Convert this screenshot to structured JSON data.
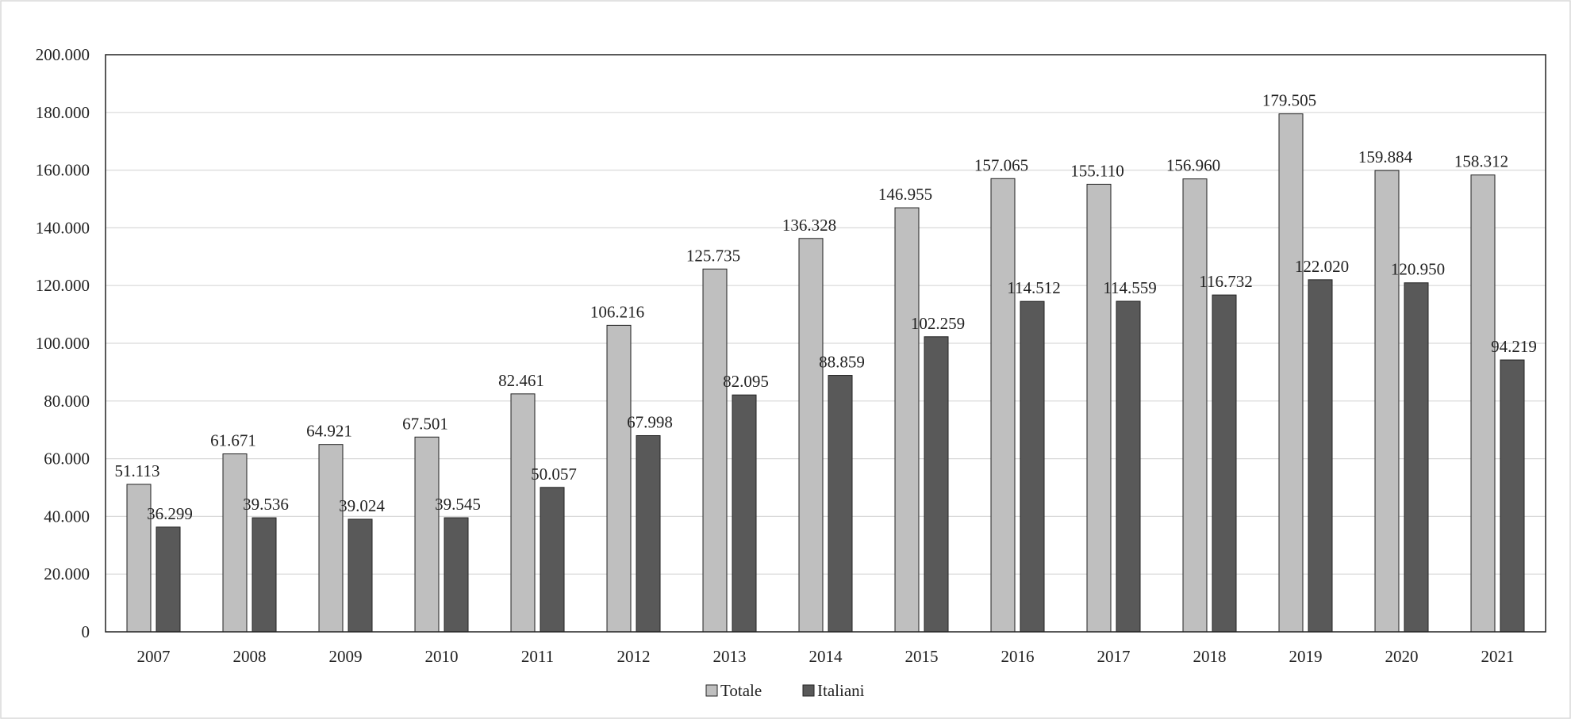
{
  "chart_data": {
    "type": "bar",
    "categories": [
      "2007",
      "2008",
      "2009",
      "2010",
      "2011",
      "2012",
      "2013",
      "2014",
      "2015",
      "2016",
      "2017",
      "2018",
      "2019",
      "2020",
      "2021"
    ],
    "series": [
      {
        "name": "Totale",
        "color": "#bfbfbf",
        "values": [
          51113,
          61671,
          64921,
          67501,
          82461,
          106216,
          125735,
          136328,
          146955,
          157065,
          155110,
          156960,
          179505,
          159884,
          158312
        ],
        "labels": [
          "51.113",
          "61.671",
          "64.921",
          "67.501",
          "82.461",
          "106.216",
          "125.735",
          "136.328",
          "146.955",
          "157.065",
          "155.110",
          "156.960",
          "179.505",
          "159.884",
          "158.312"
        ]
      },
      {
        "name": "Italiani",
        "color": "#595959",
        "values": [
          36299,
          39536,
          39024,
          39545,
          50057,
          67998,
          82095,
          88859,
          102259,
          114512,
          114559,
          116732,
          122020,
          120950,
          94219
        ],
        "labels": [
          "36.299",
          "39.536",
          "39.024",
          "39.545",
          "50.057",
          "67.998",
          "82.095",
          "88.859",
          "102.259",
          "114.512",
          "114.559",
          "116.732",
          "122.020",
          "120.950",
          "94.219"
        ]
      }
    ],
    "ylim": [
      0,
      200000
    ],
    "yticks": [
      0,
      20000,
      40000,
      60000,
      80000,
      100000,
      120000,
      140000,
      160000,
      180000,
      200000
    ],
    "ytick_labels": [
      "0",
      "20.000",
      "40.000",
      "60.000",
      "80.000",
      "100.000",
      "120.000",
      "140.000",
      "160.000",
      "180.000",
      "200.000"
    ],
    "grid": true,
    "legend_position": "bottom-center",
    "title": "",
    "xlabel": "",
    "ylabel": ""
  }
}
